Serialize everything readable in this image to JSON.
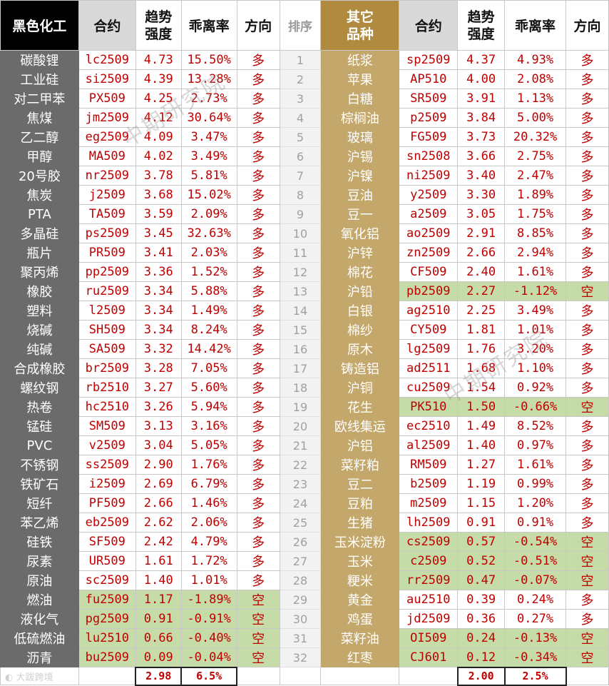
{
  "headers": {
    "left_group": "黑色化工",
    "contract": "合约",
    "trend_line1": "趋势",
    "trend_line2": "强度",
    "deviation": "乖离率",
    "direction": "方向",
    "rank": "排序",
    "right_group_line1": "其它",
    "right_group_line2": "品种"
  },
  "rows": [
    {
      "rank": "1",
      "left": {
        "name": "碳酸锂",
        "contract": "lc2509",
        "trend": "4.73",
        "dev": "15.50%",
        "dir": "多",
        "short": false
      },
      "right": {
        "name": "纸浆",
        "contract": "sp2509",
        "trend": "4.37",
        "dev": "4.93%",
        "dir": "多",
        "short": false
      }
    },
    {
      "rank": "2",
      "left": {
        "name": "工业硅",
        "contract": "si2509",
        "trend": "4.39",
        "dev": "13.28%",
        "dir": "多",
        "short": false
      },
      "right": {
        "name": "苹果",
        "contract": "AP510",
        "trend": "4.00",
        "dev": "2.08%",
        "dir": "多",
        "short": false
      }
    },
    {
      "rank": "3",
      "left": {
        "name": "对二甲苯",
        "contract": "PX509",
        "trend": "4.25",
        "dev": "2.73%",
        "dir": "多",
        "short": false
      },
      "right": {
        "name": "白糖",
        "contract": "SR509",
        "trend": "3.91",
        "dev": "1.13%",
        "dir": "多",
        "short": false
      }
    },
    {
      "rank": "4",
      "left": {
        "name": "焦煤",
        "contract": "jm2509",
        "trend": "4.12",
        "dev": "30.64%",
        "dir": "多",
        "short": false
      },
      "right": {
        "name": "棕榈油",
        "contract": "p2509",
        "trend": "3.84",
        "dev": "5.00%",
        "dir": "多",
        "short": false
      }
    },
    {
      "rank": "5",
      "left": {
        "name": "乙二醇",
        "contract": "eg2509",
        "trend": "4.09",
        "dev": "3.47%",
        "dir": "多",
        "short": false
      },
      "right": {
        "name": "玻璃",
        "contract": "FG509",
        "trend": "3.73",
        "dev": "20.32%",
        "dir": "多",
        "short": false
      }
    },
    {
      "rank": "6",
      "left": {
        "name": "甲醇",
        "contract": "MA509",
        "trend": "4.02",
        "dev": "3.49%",
        "dir": "多",
        "short": false
      },
      "right": {
        "name": "沪锡",
        "contract": "sn2508",
        "trend": "3.66",
        "dev": "2.75%",
        "dir": "多",
        "short": false
      }
    },
    {
      "rank": "7",
      "left": {
        "name": "20号胶",
        "contract": "nr2509",
        "trend": "3.78",
        "dev": "5.81%",
        "dir": "多",
        "short": false
      },
      "right": {
        "name": "沪镍",
        "contract": "ni2509",
        "trend": "3.40",
        "dev": "2.47%",
        "dir": "多",
        "short": false
      }
    },
    {
      "rank": "8",
      "left": {
        "name": "焦炭",
        "contract": "j2509",
        "trend": "3.68",
        "dev": "15.02%",
        "dir": "多",
        "short": false
      },
      "right": {
        "name": "豆油",
        "contract": "y2509",
        "trend": "3.30",
        "dev": "1.89%",
        "dir": "多",
        "short": false
      }
    },
    {
      "rank": "9",
      "left": {
        "name": "PTA",
        "contract": "TA509",
        "trend": "3.59",
        "dev": "2.09%",
        "dir": "多",
        "short": false
      },
      "right": {
        "name": "豆一",
        "contract": "a2509",
        "trend": "3.05",
        "dev": "1.75%",
        "dir": "多",
        "short": false
      }
    },
    {
      "rank": "10",
      "left": {
        "name": "多晶硅",
        "contract": "ps2509",
        "trend": "3.45",
        "dev": "32.63%",
        "dir": "多",
        "short": false
      },
      "right": {
        "name": "氧化铝",
        "contract": "ao2509",
        "trend": "2.91",
        "dev": "8.85%",
        "dir": "多",
        "short": false
      }
    },
    {
      "rank": "11",
      "left": {
        "name": "瓶片",
        "contract": "PR509",
        "trend": "3.41",
        "dev": "2.03%",
        "dir": "多",
        "short": false
      },
      "right": {
        "name": "沪锌",
        "contract": "zn2509",
        "trend": "2.66",
        "dev": "2.94%",
        "dir": "多",
        "short": false
      }
    },
    {
      "rank": "12",
      "left": {
        "name": "聚丙烯",
        "contract": "pp2509",
        "trend": "3.36",
        "dev": "1.52%",
        "dir": "多",
        "short": false
      },
      "right": {
        "name": "棉花",
        "contract": "CF509",
        "trend": "2.40",
        "dev": "1.61%",
        "dir": "多",
        "short": false
      }
    },
    {
      "rank": "13",
      "left": {
        "name": "橡胶",
        "contract": "ru2509",
        "trend": "3.34",
        "dev": "5.88%",
        "dir": "多",
        "short": false
      },
      "right": {
        "name": "沪铅",
        "contract": "pb2509",
        "trend": "2.27",
        "dev": "-1.12%",
        "dir": "空",
        "short": true
      }
    },
    {
      "rank": "14",
      "left": {
        "name": "塑料",
        "contract": "l2509",
        "trend": "3.34",
        "dev": "1.49%",
        "dir": "多",
        "short": false
      },
      "right": {
        "name": "白银",
        "contract": "ag2510",
        "trend": "2.25",
        "dev": "3.49%",
        "dir": "多",
        "short": false
      }
    },
    {
      "rank": "15",
      "left": {
        "name": "烧碱",
        "contract": "SH509",
        "trend": "3.34",
        "dev": "8.24%",
        "dir": "多",
        "short": false
      },
      "right": {
        "name": "棉纱",
        "contract": "CY509",
        "trend": "1.81",
        "dev": "1.01%",
        "dir": "多",
        "short": false
      }
    },
    {
      "rank": "16",
      "left": {
        "name": "纯碱",
        "contract": "SA509",
        "trend": "3.32",
        "dev": "14.42%",
        "dir": "多",
        "short": false
      },
      "right": {
        "name": "原木",
        "contract": "lg2509",
        "trend": "1.76",
        "dev": "3.20%",
        "dir": "多",
        "short": false
      }
    },
    {
      "rank": "17",
      "left": {
        "name": "合成橡胶",
        "contract": "br2509",
        "trend": "3.28",
        "dev": "7.05%",
        "dir": "多",
        "short": false
      },
      "right": {
        "name": "铸造铝",
        "contract": "ad2511",
        "trend": "1.68",
        "dev": "1.10%",
        "dir": "多",
        "short": false
      }
    },
    {
      "rank": "18",
      "left": {
        "name": "螺纹钢",
        "contract": "rb2510",
        "trend": "3.27",
        "dev": "5.60%",
        "dir": "多",
        "short": false
      },
      "right": {
        "name": "沪铜",
        "contract": "cu2509",
        "trend": "1.54",
        "dev": "0.92%",
        "dir": "多",
        "short": false
      }
    },
    {
      "rank": "19",
      "left": {
        "name": "热卷",
        "contract": "hc2510",
        "trend": "3.26",
        "dev": "5.94%",
        "dir": "多",
        "short": false
      },
      "right": {
        "name": "花生",
        "contract": "PK510",
        "trend": "1.50",
        "dev": "-0.66%",
        "dir": "空",
        "short": true
      }
    },
    {
      "rank": "20",
      "left": {
        "name": "锰硅",
        "contract": "SM509",
        "trend": "3.13",
        "dev": "3.16%",
        "dir": "多",
        "short": false
      },
      "right": {
        "name": "欧线集运",
        "contract": "ec2510",
        "trend": "1.49",
        "dev": "8.52%",
        "dir": "多",
        "short": false
      }
    },
    {
      "rank": "21",
      "left": {
        "name": "PVC",
        "contract": "v2509",
        "trend": "3.04",
        "dev": "5.05%",
        "dir": "多",
        "short": false
      },
      "right": {
        "name": "沪铝",
        "contract": "al2509",
        "trend": "1.40",
        "dev": "0.97%",
        "dir": "多",
        "short": false
      }
    },
    {
      "rank": "22",
      "left": {
        "name": "不锈钢",
        "contract": "ss2509",
        "trend": "2.90",
        "dev": "1.76%",
        "dir": "多",
        "short": false
      },
      "right": {
        "name": "菜籽粕",
        "contract": "RM509",
        "trend": "1.27",
        "dev": "1.61%",
        "dir": "多",
        "short": false
      }
    },
    {
      "rank": "23",
      "left": {
        "name": "铁矿石",
        "contract": "i2509",
        "trend": "2.69",
        "dev": "6.79%",
        "dir": "多",
        "short": false
      },
      "right": {
        "name": "豆二",
        "contract": "b2509",
        "trend": "1.19",
        "dev": "0.99%",
        "dir": "多",
        "short": false
      }
    },
    {
      "rank": "24",
      "left": {
        "name": "短纤",
        "contract": "PF509",
        "trend": "2.66",
        "dev": "1.46%",
        "dir": "多",
        "short": false
      },
      "right": {
        "name": "豆粕",
        "contract": "m2509",
        "trend": "1.15",
        "dev": "1.20%",
        "dir": "多",
        "short": false
      }
    },
    {
      "rank": "25",
      "left": {
        "name": "苯乙烯",
        "contract": "eb2509",
        "trend": "2.62",
        "dev": "2.06%",
        "dir": "多",
        "short": false
      },
      "right": {
        "name": "生猪",
        "contract": "lh2509",
        "trend": "0.91",
        "dev": "0.91%",
        "dir": "多",
        "short": false
      }
    },
    {
      "rank": "26",
      "left": {
        "name": "硅铁",
        "contract": "SF509",
        "trend": "2.42",
        "dev": "4.79%",
        "dir": "多",
        "short": false
      },
      "right": {
        "name": "玉米淀粉",
        "contract": "cs2509",
        "trend": "0.57",
        "dev": "-0.54%",
        "dir": "空",
        "short": true
      }
    },
    {
      "rank": "27",
      "left": {
        "name": "尿素",
        "contract": "UR509",
        "trend": "1.61",
        "dev": "1.72%",
        "dir": "多",
        "short": false
      },
      "right": {
        "name": "玉米",
        "contract": "c2509",
        "trend": "0.52",
        "dev": "-0.51%",
        "dir": "空",
        "short": true
      }
    },
    {
      "rank": "28",
      "left": {
        "name": "原油",
        "contract": "sc2509",
        "trend": "1.40",
        "dev": "1.01%",
        "dir": "多",
        "short": false
      },
      "right": {
        "name": "粳米",
        "contract": "rr2509",
        "trend": "0.47",
        "dev": "-0.07%",
        "dir": "空",
        "short": true
      }
    },
    {
      "rank": "29",
      "left": {
        "name": "燃油",
        "contract": "fu2509",
        "trend": "1.17",
        "dev": "-1.89%",
        "dir": "空",
        "short": true
      },
      "right": {
        "name": "黄金",
        "contract": "au2510",
        "trend": "0.39",
        "dev": "0.24%",
        "dir": "多",
        "short": false
      }
    },
    {
      "rank": "30",
      "left": {
        "name": "液化气",
        "contract": "pg2509",
        "trend": "0.91",
        "dev": "-0.91%",
        "dir": "空",
        "short": true
      },
      "right": {
        "name": "鸡蛋",
        "contract": "jd2509",
        "trend": "0.36",
        "dev": "0.27%",
        "dir": "多",
        "short": false
      }
    },
    {
      "rank": "31",
      "left": {
        "name": "低硫燃油",
        "contract": "lu2510",
        "trend": "0.66",
        "dev": "-0.40%",
        "dir": "空",
        "short": true
      },
      "right": {
        "name": "菜籽油",
        "contract": "OI509",
        "trend": "0.24",
        "dev": "-0.13%",
        "dir": "空",
        "short": true
      }
    },
    {
      "rank": "32",
      "left": {
        "name": "沥青",
        "contract": "bu2509",
        "trend": "0.09",
        "dev": "-0.04%",
        "dir": "空",
        "short": true
      },
      "right": {
        "name": "红枣",
        "contract": "CJ601",
        "trend": "0.12",
        "dev": "-0.34%",
        "dir": "空",
        "short": true
      }
    }
  ],
  "footer": {
    "logo_text": "大跋跨境",
    "left_avg_trend": "2.98",
    "left_avg_dev": "6.5%",
    "right_avg_trend": "2.00",
    "right_avg_dev": "2.5%"
  },
  "watermark": "中期研究院",
  "colors": {
    "left_header_bg": "#000000",
    "left_name_bg": "#6b6b6b",
    "right_header_bg": "#b08a3e",
    "right_name_bg": "#c4a76a",
    "value_text": "#c00000",
    "short_row_bg": "#c6dca8"
  }
}
